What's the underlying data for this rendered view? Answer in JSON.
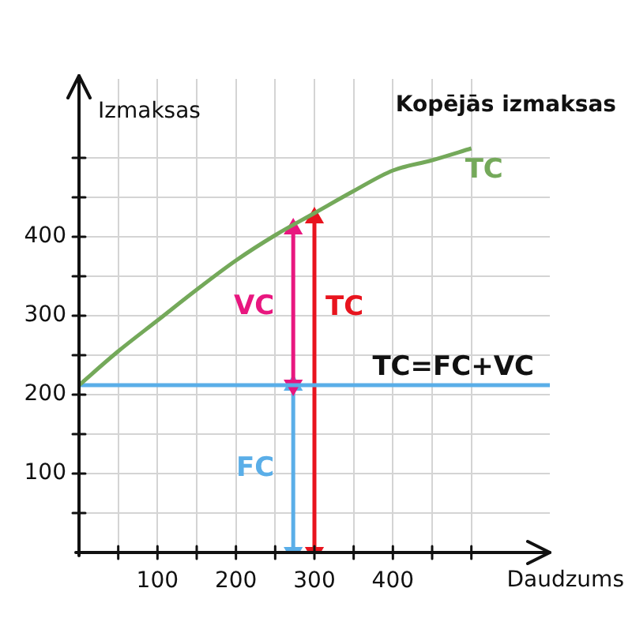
{
  "chart_data": {
    "type": "line",
    "title": "Kopējās izmaksas",
    "xlabel": "Daudzums",
    "ylabel": "Izmaksas",
    "xlim": [
      0,
      600
    ],
    "ylim": [
      0,
      600
    ],
    "xticks": [
      {
        "value": 50,
        "label": null
      },
      100,
      {
        "value": 150,
        "label": null
      },
      200,
      {
        "value": 250,
        "label": null
      },
      300,
      {
        "value": 350,
        "label": null
      },
      400,
      {
        "value": 450,
        "label": null
      },
      {
        "value": 500,
        "label": null
      }
    ],
    "yticks": [
      {
        "value": 50,
        "label": null
      },
      100,
      {
        "value": 150,
        "label": null
      },
      200,
      {
        "value": 250,
        "label": null
      },
      300,
      {
        "value": 350,
        "label": null
      },
      400,
      {
        "value": 450,
        "label": null
      },
      {
        "value": 500,
        "label": null
      }
    ],
    "grid": true,
    "legend": false,
    "marker": "none",
    "line_style": "solid",
    "series": [
      {
        "name": "TC",
        "color": "#74a95a",
        "x": [
          0,
          50,
          100,
          150,
          200,
          250,
          300,
          350,
          400,
          450,
          500
        ],
        "values": [
          212,
          255,
          294,
          333,
          370,
          402,
          430,
          458,
          484,
          497,
          512
        ]
      },
      {
        "name": "TC=FC+VC",
        "color": "#5aaee8",
        "x": [
          0,
          600
        ],
        "values": [
          212,
          212
        ]
      },
      {
        "name": "VC",
        "color": "#e8177f",
        "marker": "triangle",
        "x": [
          273,
          273
        ],
        "values": [
          212,
          410
        ]
      },
      {
        "name": "TC",
        "color": "#e8141e",
        "marker": "triangle",
        "x": [
          300,
          300
        ],
        "values": [
          0,
          424
        ]
      },
      {
        "name": "FC",
        "color": "#5aaee8",
        "marker": "triangle",
        "x": [
          273,
          273
        ],
        "values": [
          0,
          212
        ]
      }
    ]
  }
}
